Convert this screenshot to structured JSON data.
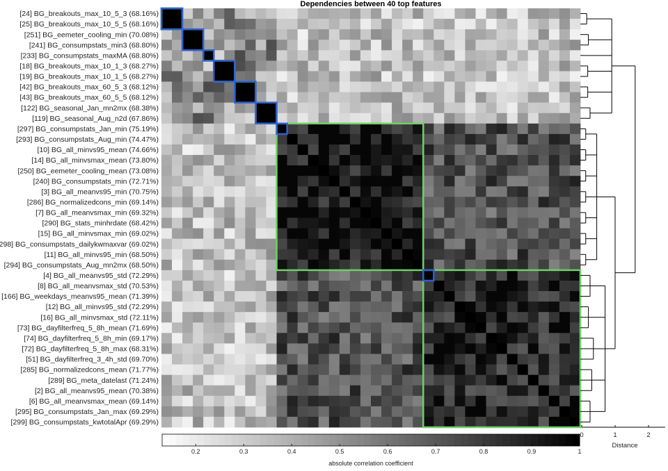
{
  "chart_data": {
    "type": "heatmap",
    "title": "Dependencies between 40 top features",
    "labels": [
      "[24] BG_breakouts_max_10_5_3 (68.16%)",
      "[25] BG_breakouts_max_10_5_5 (68.16%)",
      "[251] BG_eemeter_cooling_min (70.08%)",
      "[241] BG_consumpstats_min3 (68.80%)",
      "[233] BG_consumpstats_maxMA (68.80%)",
      "[18] BG_breakouts_max_10_1_3 (68.27%)",
      "[19] BG_breakouts_max_10_1_5 (68.27%)",
      "[42] BG_breakouts_max_60_5_3 (68.12%)",
      "[43] BG_breakouts_max_60_5_5 (68.12%)",
      "[122] BG_seasonal_Jan_mn2mx (68.38%)",
      "[119] BG_seasonal_Aug_n2d (67.86%)",
      "[297] BG_consumpstats_Jan_min (75.19%)",
      "[293] BG_consumpstats_Aug_min (74.47%)",
      "[10] BG_all_minvs95_mean (74.66%)",
      "[14] BG_all_minvsmax_mean (73.80%)",
      "[250] BG_eemeter_cooling_mean (73.08%)",
      "[240] BG_consumpstats_min (72.71%)",
      "[3] BG_all_meanvs95_min (70.75%)",
      "[286] BG_normalizedcons_min (69.14%)",
      "[7] BG_all_meanvsmax_min (69.32%)",
      "[290] BG_stats_minhrdate (68.42%)",
      "[15] BG_all_minvsmax_min (69.02%)",
      "[298] BG_consumpstats_dailykwmaxvar (69.02%)",
      "[11] BG_all_minvs95_min (68.50%)",
      "[294] BG_consumpstats_Aug_mn2mx (68.50%)",
      "[4] BG_all_meanvs95_std (72.29%)",
      "[8] BG_all_meanvsmax_std (70.53%)",
      "[166] BG_weekdays_meanvs95_mean (71.39%)",
      "[12] BG_all_minvs95_std (72.29%)",
      "[16] BG_all_minvsmax_std (72.11%)",
      "[73] BG_dayfilterfreq_5_8h_mean (71.69%)",
      "[74] BG_dayfilterfreq_5_8h_min (69.17%)",
      "[72] BG_dayfilterfreq_5_8h_max (68.31%)",
      "[51] BG_dayfilterfreq_3_4h_std (69.70%)",
      "[285] BG_normalizedcons_mean (71.77%)",
      "[289] BG_meta_datelast (71.24%)",
      "[2] BG_all_meanvs95_mean (70.38%)",
      "[6] BG_all_meanvsmax_mean (69.14%)",
      "[295] BG_consumpstats_Jan_max (69.29%)",
      "[299] BG_consumpstats_kwtotalApr (69.29%)"
    ],
    "clusters": [
      [
        0,
        9
      ],
      [
        10,
        23
      ],
      [
        24,
        39
      ]
    ],
    "blue_boxes": [
      [
        0,
        1
      ],
      [
        2,
        3
      ],
      [
        4,
        4
      ],
      [
        5,
        6
      ],
      [
        7,
        8
      ],
      [
        9,
        10
      ],
      [
        11,
        11
      ],
      [
        25,
        25
      ]
    ],
    "green_boxes": [
      [
        0,
        1
      ],
      [
        2,
        3
      ],
      [
        4,
        4
      ],
      [
        5,
        6
      ],
      [
        7,
        8
      ],
      [
        9,
        10
      ],
      [
        11,
        24
      ],
      [
        25,
        39
      ]
    ],
    "colorbar": {
      "label": "absolute correlation coefficient",
      "range": [
        0.13,
        1.0
      ],
      "ticks": [
        "0.2",
        "0.3",
        "0.4",
        "0.5",
        "0.6",
        "0.7",
        "0.8",
        "0.9",
        "1"
      ]
    },
    "dendrogram": {
      "xlabel": "Distance",
      "ticks": [
        "0",
        "1",
        "2"
      ],
      "range": [
        0,
        2.5
      ]
    }
  }
}
